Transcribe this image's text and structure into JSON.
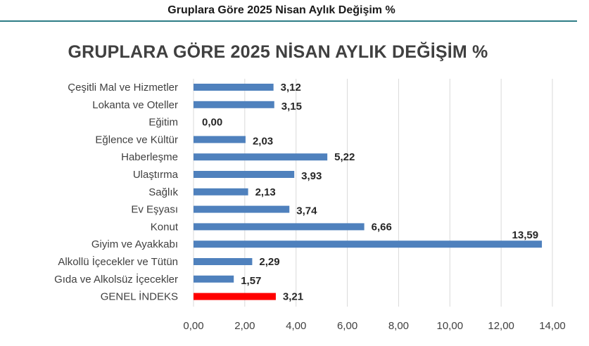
{
  "page": {
    "header_title": "Gruplara Göre 2025 Nisan Aylık Değişim %"
  },
  "chart_data": {
    "type": "bar",
    "orientation": "horizontal",
    "title": "GRUPLARA GÖRE 2025 NİSAN AYLIK DEĞİŞİM %",
    "categories": [
      "Çeşitli Mal ve Hizmetler",
      "Lokanta ve Oteller",
      "Eğitim",
      "Eğlence ve Kültür",
      "Haberleşme",
      "Ulaştırma",
      "Sağlık",
      "Ev Eşyası",
      "Konut",
      "Giyim ve Ayakkabı",
      "Alkollü İçecekler ve Tütün",
      "Gıda ve Alkolsüz İçecekler",
      "GENEL İNDEKS"
    ],
    "values": [
      3.12,
      3.15,
      0.0,
      2.03,
      5.22,
      3.93,
      2.13,
      3.74,
      6.66,
      13.59,
      2.29,
      1.57,
      3.21
    ],
    "data_labels": [
      "3,12",
      "3,15",
      "0,00",
      "2,03",
      "5,22",
      "3,93",
      "2,13",
      "3,74",
      "6,66",
      "13,59",
      "2,29",
      "1,57",
      "3,21"
    ],
    "xlim": [
      0,
      14
    ],
    "xticks": [
      "0,00",
      "2,00",
      "4,00",
      "6,00",
      "8,00",
      "10,00",
      "12,00",
      "14,00"
    ],
    "grid": "vertical",
    "colors": {
      "bar": "#4f81bd",
      "highlight_bar": "#ff0000",
      "highlight_category": "GENEL İNDEKS",
      "grid": "#d9d9d9"
    }
  }
}
